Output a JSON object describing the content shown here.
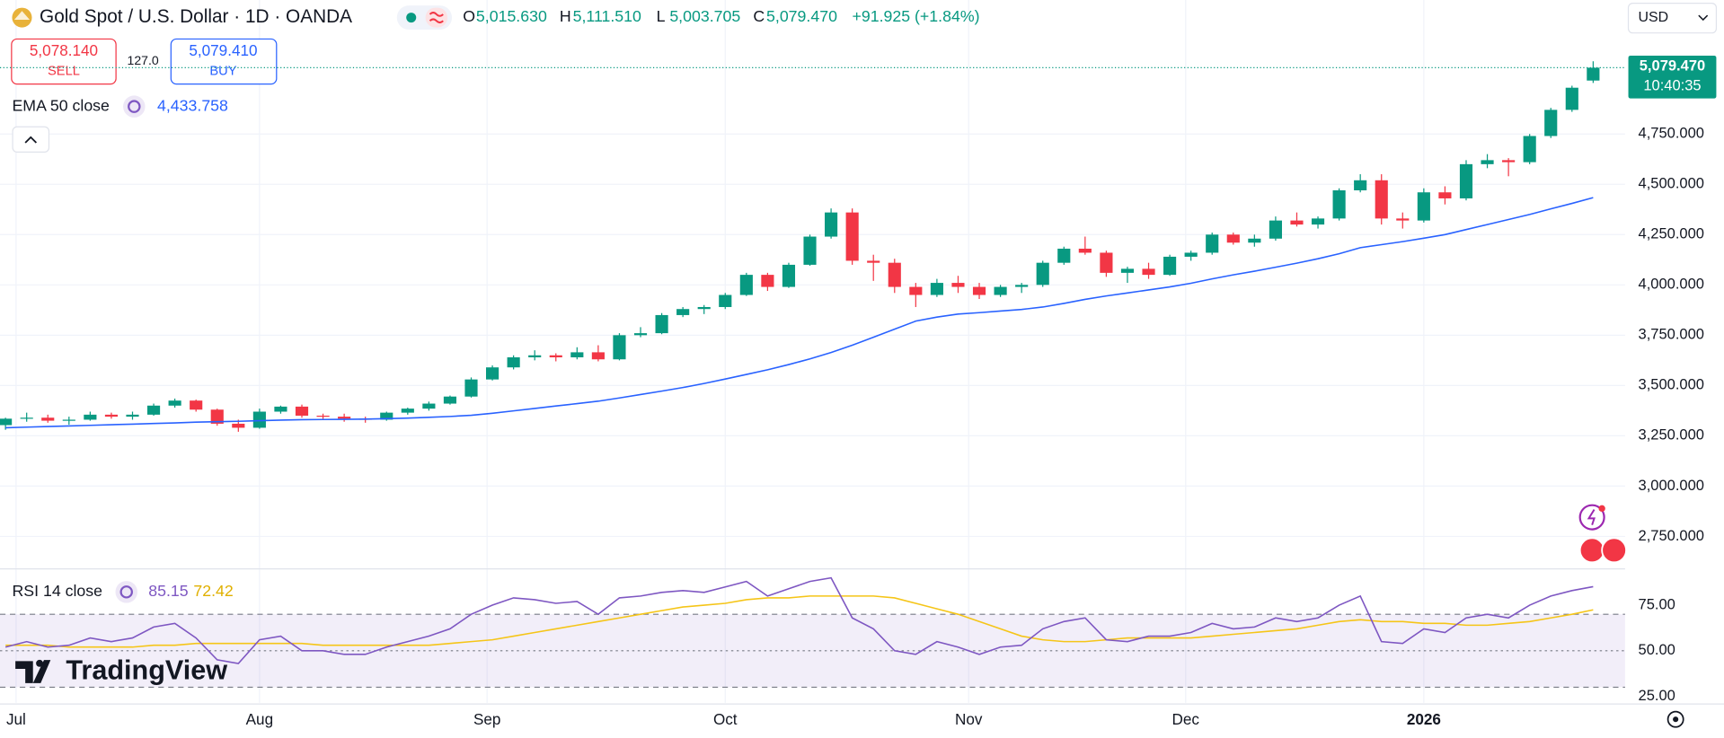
{
  "header": {
    "symbol": "Gold Spot / U.S. Dollar · 1D · OANDA",
    "ohlc": [
      {
        "key": "O",
        "value": "5,015.630"
      },
      {
        "key": "H",
        "value": "5,111.510"
      },
      {
        "key": "L",
        "value": "5,003.705"
      },
      {
        "key": "C",
        "value": "5,079.470"
      }
    ],
    "change": "+91.925 (+1.84%)",
    "currency": "USD"
  },
  "trade": {
    "sell_price": "5,078.140",
    "sell": "SELL",
    "spread": "127.0",
    "buy_price": "5,079.410",
    "buy": "BUY"
  },
  "indicator_values": {
    "ema": "4,433.758"
  },
  "price_tag": {
    "price": "5,079.470",
    "time": "10:40:35"
  },
  "logo": "TradingView",
  "chart_data": [
    {
      "type": "candlestick",
      "up_color": "#089981",
      "down_color": "#f23645",
      "open": [
        3303,
        3335,
        3340,
        3325,
        3330,
        3355,
        3345,
        3355,
        3400,
        3425,
        3380,
        3310,
        3290,
        3370,
        3395,
        3350,
        3345,
        3335,
        3330,
        3365,
        3385,
        3410,
        3445,
        3530,
        3590,
        3640,
        3650,
        3640,
        3665,
        3630,
        3750,
        3760,
        3850,
        3880,
        3890,
        3950,
        4050,
        3990,
        4100,
        4240,
        4360,
        4120,
        4110,
        3990,
        3950,
        4010,
        3990,
        3950,
        3990,
        4000,
        4110,
        4180,
        4160,
        4060,
        4080,
        4050,
        4140,
        4160,
        4250,
        4210,
        4230,
        4320,
        4300,
        4330,
        4470,
        4520,
        4330,
        4320,
        4460,
        4430,
        4600,
        4620,
        4610,
        4740,
        4870,
        5015.63
      ],
      "high": [
        3340,
        3365,
        3355,
        3345,
        3370,
        3365,
        3370,
        3410,
        3435,
        3430,
        3385,
        3330,
        3385,
        3400,
        3405,
        3360,
        3360,
        3345,
        3370,
        3390,
        3420,
        3450,
        3540,
        3600,
        3650,
        3675,
        3660,
        3690,
        3700,
        3760,
        3790,
        3860,
        3890,
        3900,
        3960,
        4060,
        4060,
        4110,
        4250,
        4380,
        4380,
        4150,
        4130,
        4010,
        4030,
        4045,
        4010,
        4000,
        4010,
        4120,
        4190,
        4240,
        4170,
        4090,
        4110,
        4150,
        4170,
        4260,
        4260,
        4250,
        4340,
        4360,
        4340,
        4480,
        4550,
        4550,
        4360,
        4480,
        4490,
        4620,
        4650,
        4630,
        4750,
        4880,
        4990,
        5111.51
      ],
      "low": [
        3280,
        3320,
        3315,
        3305,
        3325,
        3335,
        3330,
        3350,
        3390,
        3370,
        3300,
        3270,
        3285,
        3360,
        3340,
        3330,
        3320,
        3315,
        3325,
        3355,
        3375,
        3405,
        3440,
        3525,
        3580,
        3625,
        3620,
        3630,
        3620,
        3625,
        3740,
        3755,
        3840,
        3855,
        3880,
        3945,
        3970,
        3985,
        4095,
        4230,
        4100,
        4020,
        3960,
        3890,
        3940,
        3960,
        3930,
        3940,
        3960,
        3990,
        4100,
        4150,
        4040,
        4010,
        4030,
        4045,
        4120,
        4150,
        4200,
        4190,
        4220,
        4290,
        4280,
        4320,
        4460,
        4300,
        4280,
        4310,
        4400,
        4420,
        4580,
        4540,
        4600,
        4730,
        4860,
        5003.705
      ],
      "close": [
        3335,
        3340,
        3325,
        3330,
        3355,
        3345,
        3355,
        3400,
        3425,
        3380,
        3310,
        3290,
        3370,
        3395,
        3350,
        3345,
        3335,
        3330,
        3365,
        3385,
        3410,
        3445,
        3530,
        3590,
        3640,
        3650,
        3640,
        3665,
        3630,
        3750,
        3760,
        3850,
        3880,
        3890,
        3950,
        4050,
        3990,
        4100,
        4240,
        4360,
        4120,
        4110,
        3990,
        3950,
        4010,
        3990,
        3950,
        3990,
        4000,
        4110,
        4180,
        4160,
        4060,
        4080,
        4050,
        4140,
        4160,
        4250,
        4210,
        4230,
        4320,
        4300,
        4330,
        4470,
        4520,
        4330,
        4320,
        4460,
        4430,
        4600,
        4620,
        4610,
        4740,
        4870,
        4980,
        5079.47
      ],
      "series": [
        {
          "name": "EMA 50 close",
          "color": "#2962ff",
          "values": [
            3290,
            3293,
            3296,
            3299,
            3302,
            3305,
            3308,
            3311,
            3314,
            3318,
            3320,
            3322,
            3325,
            3328,
            3330,
            3331,
            3332,
            3333,
            3335,
            3338,
            3342,
            3346,
            3352,
            3362,
            3374,
            3386,
            3398,
            3410,
            3422,
            3438,
            3455,
            3472,
            3490,
            3510,
            3532,
            3555,
            3578,
            3604,
            3632,
            3664,
            3700,
            3740,
            3780,
            3820,
            3840,
            3855,
            3862,
            3870,
            3878,
            3890,
            3908,
            3928,
            3945,
            3960,
            3975,
            3990,
            4008,
            4030,
            4050,
            4068,
            4088,
            4108,
            4130,
            4155,
            4185,
            4200,
            4215,
            4232,
            4250,
            4275,
            4300,
            4325,
            4350,
            4378,
            4405,
            4433.758
          ]
        }
      ],
      "ylim": [
        2594,
        5416
      ],
      "yticks": [
        {
          "value": 2750,
          "label": "2,750.000"
        },
        {
          "value": 3000,
          "label": "3,000.000"
        },
        {
          "value": 3250,
          "label": "3,250.000"
        },
        {
          "value": 3500,
          "label": "3,500.000"
        },
        {
          "value": 3750,
          "label": "3,750.000"
        },
        {
          "value": 4000,
          "label": "4,000.000"
        },
        {
          "value": 4250,
          "label": "4,250.000"
        },
        {
          "value": 4500,
          "label": "4,500.000"
        },
        {
          "value": 4750,
          "label": "4,750.000"
        }
      ],
      "xticks": [
        {
          "value": 0.5,
          "label": "Jul"
        },
        {
          "value": 12,
          "label": "Aug"
        },
        {
          "value": 22.75,
          "label": "Sep"
        },
        {
          "value": 34,
          "label": "Oct"
        },
        {
          "value": 45.5,
          "label": "Nov"
        },
        {
          "value": 55.75,
          "label": "Dec"
        },
        {
          "value": 67,
          "label": "2026",
          "bold": true
        }
      ],
      "grid": true
    },
    {
      "type": "line",
      "series": [
        {
          "name": "RSI 14 close",
          "color": "#7e57c2",
          "values": [
            52,
            55,
            52,
            53,
            57,
            55,
            57,
            63,
            65,
            57,
            45,
            43,
            56,
            58,
            50,
            50,
            48,
            48,
            52,
            55,
            58,
            62,
            70,
            75,
            79,
            78,
            76,
            77,
            70,
            79,
            80,
            82,
            83,
            82,
            85,
            88,
            80,
            84,
            88,
            90,
            68,
            62,
            50,
            48,
            55,
            52,
            48,
            52,
            53,
            62,
            66,
            68,
            56,
            55,
            58,
            58,
            60,
            65,
            62,
            63,
            68,
            66,
            68,
            75,
            80,
            55,
            54,
            62,
            60,
            68,
            70,
            68,
            75,
            80,
            83,
            85.15
          ]
        },
        {
          "color": "#f5c518",
          "values": [
            53,
            53,
            53,
            52,
            52,
            52,
            52,
            53,
            53,
            54,
            54,
            54,
            54,
            54,
            54,
            53,
            53,
            53,
            53,
            53,
            53,
            54,
            55,
            56,
            58,
            60,
            62,
            64,
            66,
            68,
            70,
            72,
            74,
            75,
            76,
            78,
            79,
            79,
            80,
            80,
            80,
            80,
            79,
            76,
            73,
            70,
            66,
            62,
            58,
            56,
            55,
            55,
            56,
            57,
            57,
            57,
            57,
            58,
            59,
            60,
            61,
            62,
            64,
            66,
            67,
            66,
            66,
            65,
            65,
            64,
            64,
            65,
            66,
            68,
            70,
            72.42
          ]
        }
      ],
      "ylim": [
        21.4,
        94.3
      ],
      "yticks": [
        {
          "value": 25,
          "label": "25.00"
        },
        {
          "value": 50,
          "label": "50.00"
        },
        {
          "value": 75,
          "label": "75.00"
        }
      ],
      "bands": [
        70,
        50,
        30
      ],
      "band_fill": "#7e57c2"
    }
  ]
}
